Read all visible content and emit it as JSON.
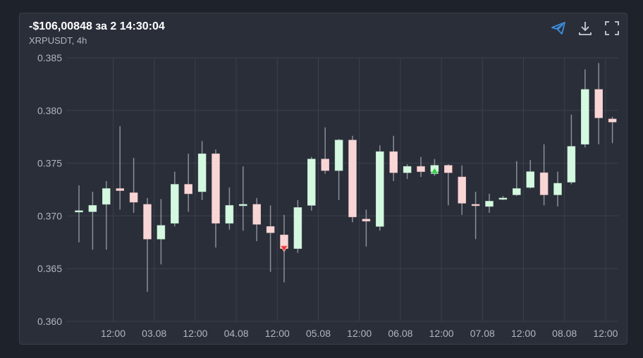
{
  "header": {
    "title": "-$106,00848 за 2 14:30:04",
    "subtitle": "XRPUSDT, 4h"
  },
  "toolbar": {
    "icons": [
      "telegram-icon",
      "download-icon",
      "fullscreen-icon"
    ]
  },
  "colors": {
    "up_fill": "#d4f8e0",
    "down_fill": "#f8d6d6",
    "wick": "#8a8e98",
    "grid": "#3b404c",
    "buy_marker": "#2ecc40",
    "sell_marker": "#e53935",
    "accent": "#3d8fe0"
  },
  "chart_data": {
    "type": "candlestick",
    "ylim": [
      0.36,
      0.385
    ],
    "yticks": [
      "0.385",
      "0.380",
      "0.375",
      "0.370",
      "0.365",
      "0.360"
    ],
    "xtick_labels": [
      "12:00",
      "03.08",
      "12:00",
      "04.08",
      "12:00",
      "05.08",
      "12:00",
      "06.08",
      "12:00",
      "07.08",
      "12:00",
      "08.08",
      "12:00"
    ],
    "xtick_index": [
      2.5,
      5.5,
      8.5,
      11.5,
      14.5,
      17.5,
      20.5,
      23.5,
      26.5,
      29.5,
      32.5,
      35.5,
      38.5
    ],
    "grid": true,
    "candles": [
      {
        "o": 0.3705,
        "h": 0.3729,
        "l": 0.3675,
        "c": 0.3705
      },
      {
        "o": 0.3704,
        "h": 0.3723,
        "l": 0.3668,
        "c": 0.371
      },
      {
        "o": 0.3711,
        "h": 0.3733,
        "l": 0.3668,
        "c": 0.3726
      },
      {
        "o": 0.3726,
        "h": 0.3785,
        "l": 0.3706,
        "c": 0.3724
      },
      {
        "o": 0.3722,
        "h": 0.3755,
        "l": 0.3703,
        "c": 0.3713
      },
      {
        "o": 0.3711,
        "h": 0.3717,
        "l": 0.3628,
        "c": 0.3678
      },
      {
        "o": 0.3678,
        "h": 0.3716,
        "l": 0.3654,
        "c": 0.3691
      },
      {
        "o": 0.3693,
        "h": 0.3742,
        "l": 0.369,
        "c": 0.373
      },
      {
        "o": 0.373,
        "h": 0.3759,
        "l": 0.3704,
        "c": 0.3721
      },
      {
        "o": 0.3723,
        "h": 0.3771,
        "l": 0.3715,
        "c": 0.3759
      },
      {
        "o": 0.3759,
        "h": 0.3763,
        "l": 0.367,
        "c": 0.3693
      },
      {
        "o": 0.3693,
        "h": 0.3727,
        "l": 0.3687,
        "c": 0.371
      },
      {
        "o": 0.3711,
        "h": 0.3747,
        "l": 0.3686,
        "c": 0.3711
      },
      {
        "o": 0.3711,
        "h": 0.3717,
        "l": 0.3676,
        "c": 0.3692
      },
      {
        "o": 0.369,
        "h": 0.371,
        "l": 0.3647,
        "c": 0.3684
      },
      {
        "o": 0.3682,
        "h": 0.3701,
        "l": 0.3637,
        "c": 0.3669
      },
      {
        "o": 0.3669,
        "h": 0.3715,
        "l": 0.3665,
        "c": 0.3708
      },
      {
        "o": 0.371,
        "h": 0.3756,
        "l": 0.3705,
        "c": 0.3754
      },
      {
        "o": 0.3754,
        "h": 0.3784,
        "l": 0.374,
        "c": 0.3743
      },
      {
        "o": 0.3743,
        "h": 0.3773,
        "l": 0.3715,
        "c": 0.3772
      },
      {
        "o": 0.3772,
        "h": 0.3776,
        "l": 0.3694,
        "c": 0.3699
      },
      {
        "o": 0.3697,
        "h": 0.3706,
        "l": 0.3671,
        "c": 0.3695
      },
      {
        "o": 0.369,
        "h": 0.3767,
        "l": 0.3686,
        "c": 0.3761
      },
      {
        "o": 0.3761,
        "h": 0.3776,
        "l": 0.3733,
        "c": 0.3741
      },
      {
        "o": 0.3741,
        "h": 0.3749,
        "l": 0.3735,
        "c": 0.3747
      },
      {
        "o": 0.3747,
        "h": 0.3756,
        "l": 0.3737,
        "c": 0.3742
      },
      {
        "o": 0.3742,
        "h": 0.3754,
        "l": 0.3738,
        "c": 0.3748
      },
      {
        "o": 0.3748,
        "h": 0.3749,
        "l": 0.371,
        "c": 0.3741
      },
      {
        "o": 0.3737,
        "h": 0.3748,
        "l": 0.3701,
        "c": 0.3712
      },
      {
        "o": 0.3711,
        "h": 0.3723,
        "l": 0.3678,
        "c": 0.371
      },
      {
        "o": 0.3709,
        "h": 0.3721,
        "l": 0.3703,
        "c": 0.3714
      },
      {
        "o": 0.3716,
        "h": 0.3719,
        "l": 0.3715,
        "c": 0.3717
      },
      {
        "o": 0.372,
        "h": 0.3752,
        "l": 0.3719,
        "c": 0.3726
      },
      {
        "o": 0.3727,
        "h": 0.3753,
        "l": 0.3726,
        "c": 0.3742
      },
      {
        "o": 0.3741,
        "h": 0.3768,
        "l": 0.371,
        "c": 0.372
      },
      {
        "o": 0.372,
        "h": 0.3742,
        "l": 0.3709,
        "c": 0.3731
      },
      {
        "o": 0.3732,
        "h": 0.3796,
        "l": 0.373,
        "c": 0.3766
      },
      {
        "o": 0.3768,
        "h": 0.3839,
        "l": 0.3765,
        "c": 0.382
      },
      {
        "o": 0.382,
        "h": 0.3845,
        "l": 0.3768,
        "c": 0.3793
      },
      {
        "o": 0.3792,
        "h": 0.3794,
        "l": 0.3769,
        "c": 0.3789
      }
    ],
    "markers": [
      {
        "index": 15,
        "type": "sell",
        "price": 0.3669
      },
      {
        "index": 26,
        "type": "buy",
        "price": 0.3743
      }
    ]
  }
}
